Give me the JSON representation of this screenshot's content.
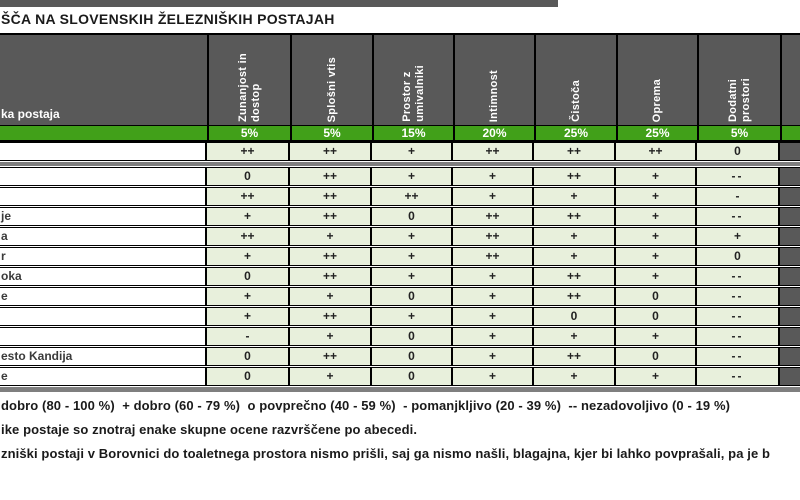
{
  "title": "ŠČA NA SLOVENSKIH ŽELEZNIŠKIH POSTAJAH",
  "table": {
    "station_column_label": "ka postaja",
    "columns": [
      {
        "label": "Zunanjost in\ndostop",
        "weight": "5%"
      },
      {
        "label": "Splošni vtis",
        "weight": "5%"
      },
      {
        "label": "Prostor z\numivalniki",
        "weight": "15%"
      },
      {
        "label": "Intimnost",
        "weight": "20%"
      },
      {
        "label": "Čistoča",
        "weight": "25%"
      },
      {
        "label": "Oprema",
        "weight": "25%"
      },
      {
        "label": "Dodatni\nprostori",
        "weight": "5%"
      }
    ],
    "rows": [
      {
        "station": "",
        "ratings": [
          "++",
          "++",
          "+",
          "++",
          "++",
          "++",
          "0"
        ]
      },
      {
        "station": "",
        "ratings": [
          "0",
          "++",
          "+",
          "+",
          "++",
          "+",
          "--"
        ]
      },
      {
        "station": "",
        "ratings": [
          "++",
          "++",
          "++",
          "+",
          "+",
          "+",
          "-"
        ]
      },
      {
        "station": "je",
        "ratings": [
          "+",
          "++",
          "0",
          "++",
          "++",
          "+",
          "--"
        ]
      },
      {
        "station": "a",
        "ratings": [
          "++",
          "+",
          "+",
          "++",
          "+",
          "+",
          "+"
        ]
      },
      {
        "station": "r",
        "ratings": [
          "+",
          "++",
          "+",
          "++",
          "+",
          "+",
          "0"
        ]
      },
      {
        "station": "oka",
        "ratings": [
          "0",
          "++",
          "+",
          "+",
          "++",
          "+",
          "--"
        ]
      },
      {
        "station": "e",
        "ratings": [
          "+",
          "+",
          "0",
          "+",
          "++",
          "0",
          "--"
        ]
      },
      {
        "station": "",
        "ratings": [
          "+",
          "++",
          "+",
          "+",
          "0",
          "0",
          "--"
        ]
      },
      {
        "station": "",
        "ratings": [
          "-",
          "+",
          "0",
          "+",
          "+",
          "+",
          "--"
        ]
      },
      {
        "station": "esto Kandija",
        "ratings": [
          "0",
          "++",
          "0",
          "+",
          "++",
          "0",
          "--"
        ]
      },
      {
        "station": "e",
        "ratings": [
          "0",
          "+",
          "0",
          "+",
          "+",
          "+",
          "--"
        ]
      }
    ]
  },
  "footnotes": {
    "legend": "dobro (80 - 100 %)  + dobro (60 - 79 %)  o povprečno (40 - 59 %)  - pomanjkljivo (20 - 39 %)  -- nezadovoljivo (0 - 19 %)",
    "note_alphabetical": "ike postaje so znotraj enake skupne ocene razvrščene po abecedi.",
    "note_borovnica": "zniški postaji v Borovnici do toaletnega prostora nismo prišli, saj ga nismo našli, blagajna, kjer bi lahko povprašali, pa je b"
  },
  "colors": {
    "header_gray": "#595959",
    "band_green": "#41a019",
    "cell_light_green": "#e8f0dc",
    "separator_gray": "#7f7f7f"
  }
}
